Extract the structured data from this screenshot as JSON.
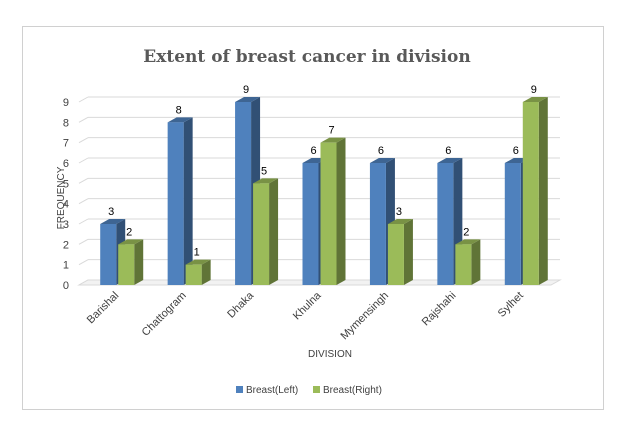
{
  "chart_data": {
    "type": "bar",
    "title": "Extent of breast cancer in division",
    "xlabel": "DIVISION",
    "ylabel": "FREQUENCY",
    "categories": [
      "Barishal",
      "Chattogram",
      "Dhaka",
      "Khulna",
      "Mymensingh",
      "Rajshahi",
      "Sylhet"
    ],
    "series": [
      {
        "name": "Breast(Left)",
        "values": [
          3,
          8,
          9,
          6,
          6,
          6,
          6
        ],
        "color": "#4f81bd"
      },
      {
        "name": "Breast(Right)",
        "values": [
          2,
          1,
          5,
          7,
          3,
          2,
          9
        ],
        "color": "#9bbb59"
      }
    ],
    "ylim": [
      0,
      9
    ],
    "yticks": [
      0,
      1,
      2,
      3,
      4,
      5,
      6,
      7,
      8,
      9
    ],
    "grid": true,
    "legend": "bottom",
    "style": "3d-clustered-column"
  }
}
